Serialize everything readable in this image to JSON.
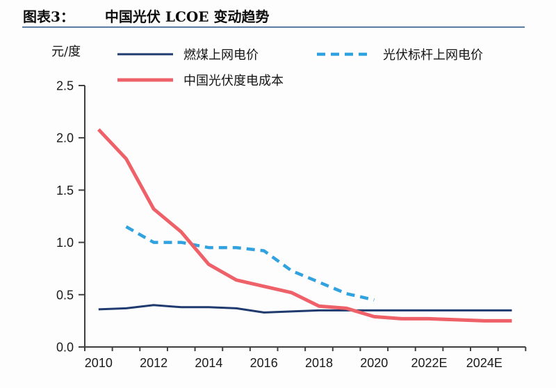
{
  "header": {
    "label": "图表3：",
    "title": "中国光伏 LCOE 变动趋势"
  },
  "chart": {
    "unit_label": "元/度",
    "colors": {
      "axis": "#3f3f3f",
      "title_underline": "#5b7ca3",
      "coal_line": "#1e3a6e",
      "pv_benchmark_line": "#31a2e0",
      "pv_lcoe_line": "#ef6168"
    }
  },
  "chart_data": {
    "type": "line",
    "title": "中国光伏 LCOE 变动趋势",
    "ylabel": "元/度",
    "ylim": [
      0,
      2.5
    ],
    "grid": false,
    "legend_position": "top",
    "y_tick_labels": [
      "2.5",
      "2.0",
      "1.5",
      "1.0",
      "0.5",
      "0.0"
    ],
    "y_ticks": [
      2.5,
      2.0,
      1.5,
      1.0,
      0.5,
      0.0
    ],
    "x_tick_labels": [
      "2010",
      "2012",
      "2014",
      "2016",
      "2018",
      "2020",
      "2022E",
      "2024E"
    ],
    "categories": [
      2010,
      2011,
      2012,
      2013,
      2014,
      2015,
      2016,
      2017,
      2018,
      2019,
      2020,
      2021,
      2022,
      2023,
      2024,
      2025
    ],
    "series": [
      {
        "name": "燃煤上网电价",
        "color": "#1e3a6e",
        "style": "solid",
        "width": 3,
        "values": [
          0.36,
          0.37,
          0.4,
          0.38,
          0.38,
          0.37,
          0.33,
          0.34,
          0.35,
          0.35,
          0.35,
          0.35,
          0.35,
          0.35,
          0.35,
          0.35
        ]
      },
      {
        "name": "光伏标杆上网电价",
        "color": "#31a2e0",
        "style": "dashed",
        "width": 4.5,
        "values": [
          null,
          1.15,
          1.0,
          1.0,
          0.95,
          0.95,
          0.92,
          0.73,
          0.62,
          0.51,
          0.45,
          null,
          null,
          null,
          null,
          null
        ]
      },
      {
        "name": "中国光伏度电成本",
        "color": "#ef6168",
        "style": "solid",
        "width": 5,
        "values": [
          2.08,
          1.8,
          1.32,
          1.1,
          0.79,
          0.64,
          0.58,
          0.52,
          0.39,
          0.37,
          0.29,
          0.27,
          0.27,
          0.26,
          0.25,
          0.25
        ]
      }
    ]
  }
}
